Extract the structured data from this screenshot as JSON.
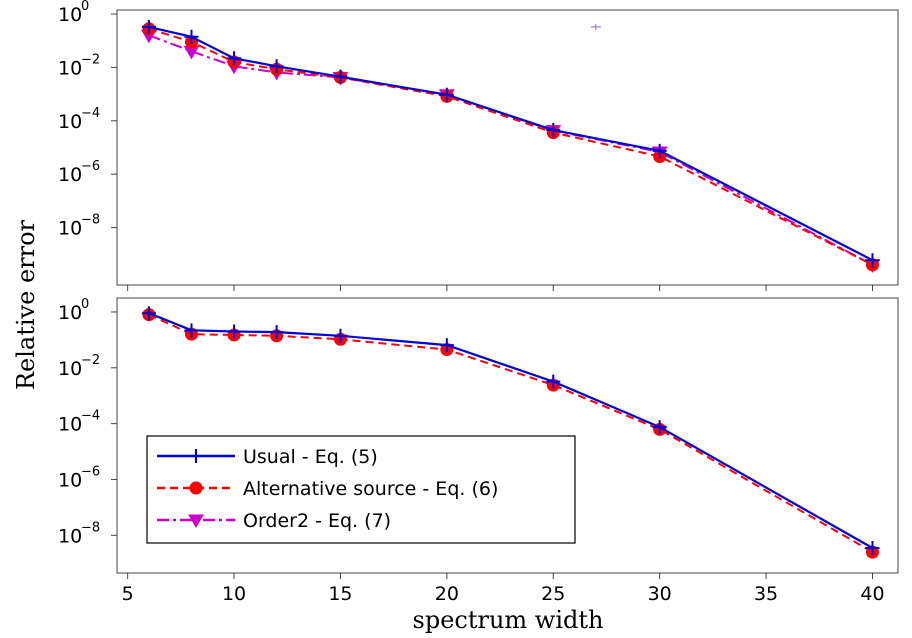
{
  "chart_data": {
    "type": "line",
    "ylabel": "Relative error",
    "xlabel": "spectrum width",
    "x_ticks": [
      5,
      10,
      15,
      20,
      25,
      30,
      35,
      40
    ],
    "xlim": [
      4.5,
      41.2
    ],
    "y_scale": "log",
    "legend": {
      "placement": "lower-left of bottom panel",
      "entries": [
        {
          "label": "Usual - Eq. (5)",
          "color": "#0000dd",
          "marker": "plus",
          "linestyle": "solid"
        },
        {
          "label": "Alternative source - Eq. (6)",
          "color": "#ff0000",
          "marker": "circle",
          "linestyle": "dashed"
        },
        {
          "label": "Order2 - Eq. (7)",
          "color": "#cc00cc",
          "marker": "triangle-down",
          "linestyle": "dashdot"
        }
      ]
    },
    "panels": [
      {
        "name": "top",
        "ylim_exp": [
          -10.15,
          0.15
        ],
        "y_tick_exps": [
          0,
          -2,
          -4,
          -6,
          -8
        ],
        "annotation_marker": {
          "x": 27,
          "y": 0.33,
          "color": "#9966cc"
        },
        "series": [
          {
            "name": "Usual - Eq. (5)",
            "x": [
              6,
              8,
              10,
              12,
              15,
              20,
              25,
              30,
              40
            ],
            "y": [
              0.33,
              0.14,
              0.022,
              0.011,
              0.0045,
              0.00095,
              4.5e-05,
              7.5e-06,
              6e-10
            ]
          },
          {
            "name": "Alternative source - Eq. (6)",
            "x": [
              6,
              8,
              10,
              12,
              15,
              20,
              25,
              30,
              40
            ],
            "y": [
              0.28,
              0.09,
              0.016,
              0.0085,
              0.0042,
              0.00082,
              3.6e-05,
              4.6e-06,
              4e-10
            ]
          },
          {
            "name": "Order2 - Eq. (7)",
            "x": [
              6,
              8,
              10,
              12,
              15,
              20,
              25,
              30,
              40
            ],
            "y": [
              0.16,
              0.04,
              0.011,
              0.0065,
              0.0042,
              0.00095,
              4.3e-05,
              6.8e-06,
              4e-10
            ]
          }
        ]
      },
      {
        "name": "bottom",
        "ylim_exp": [
          -9.35,
          0.5
        ],
        "y_tick_exps": [
          0,
          -2,
          -4,
          -6,
          -8
        ],
        "series": [
          {
            "name": "Usual - Eq. (5)",
            "x": [
              6,
              8,
              10,
              12,
              15,
              20,
              25,
              30,
              40
            ],
            "y": [
              0.9,
              0.22,
              0.2,
              0.19,
              0.14,
              0.065,
              0.0032,
              7.5e-05,
              3.5e-09
            ]
          },
          {
            "name": "Alternative source - Eq. (6)",
            "x": [
              6,
              8,
              10,
              12,
              15,
              20,
              25,
              30,
              40
            ],
            "y": [
              0.8,
              0.16,
              0.15,
              0.14,
              0.105,
              0.045,
              0.0024,
              6.2e-05,
              2.5e-09
            ]
          }
        ]
      }
    ]
  }
}
